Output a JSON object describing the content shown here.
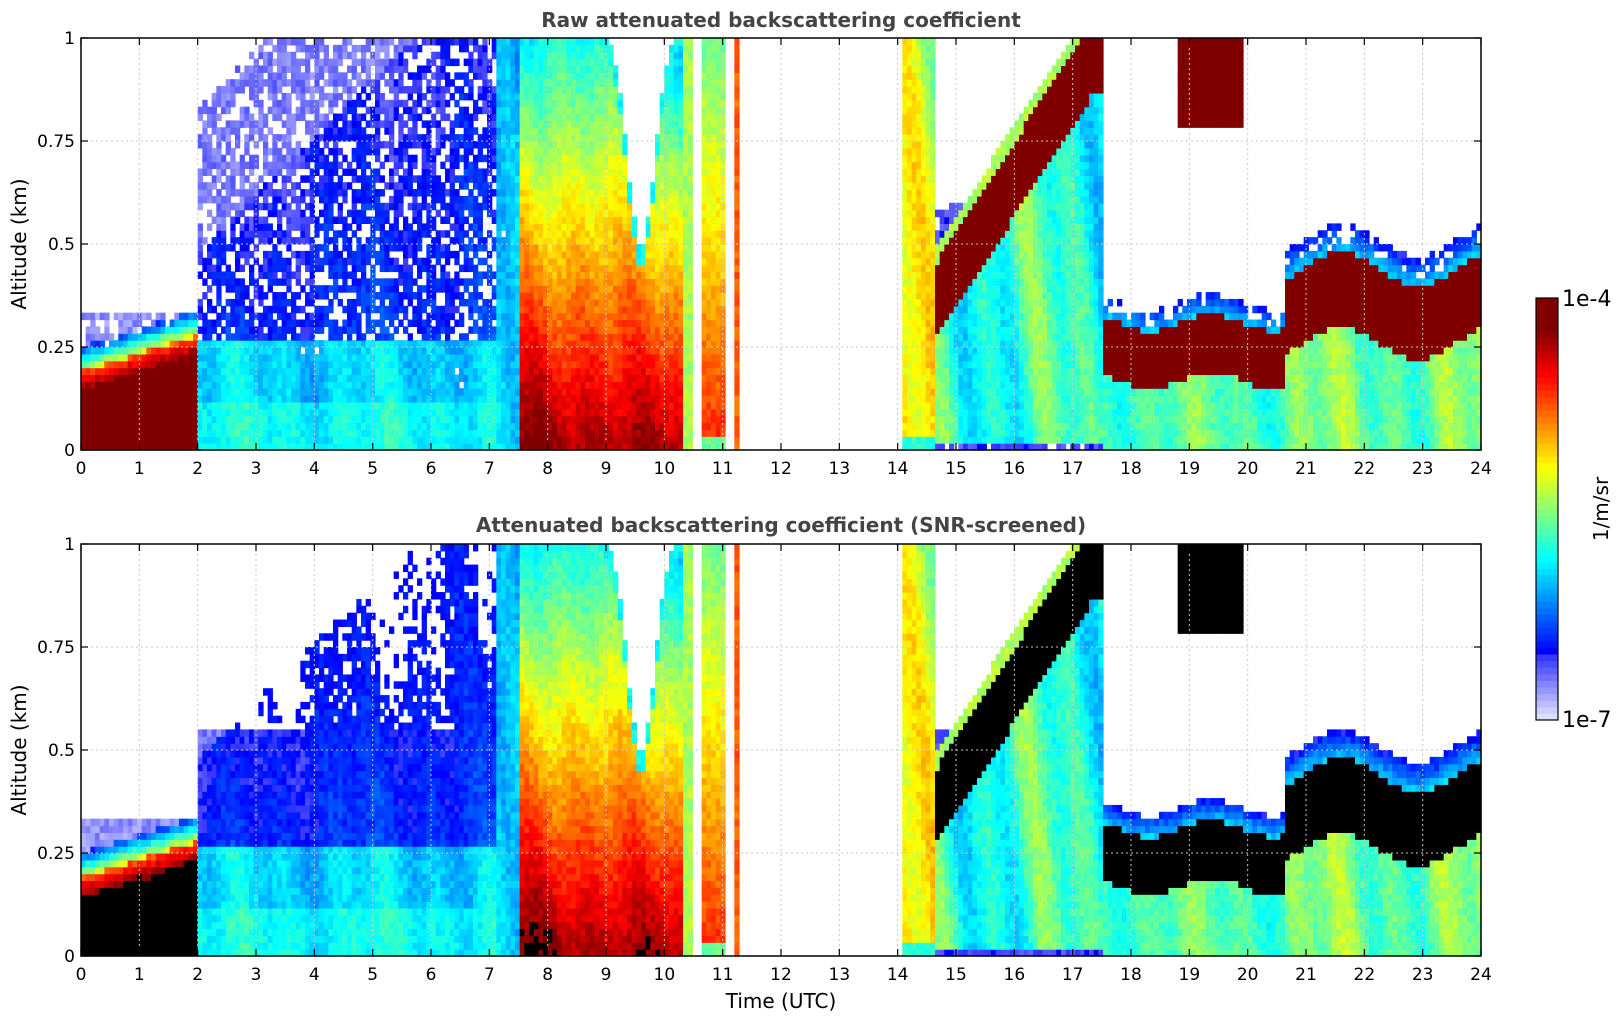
{
  "chart_data": [
    {
      "type": "heatmap",
      "title": "Raw attenuated backscattering coefficient",
      "xlabel": "",
      "ylabel": "Altitude (km)",
      "xlim": [
        0,
        24
      ],
      "ylim": [
        0,
        1
      ],
      "x_ticks": [
        "0",
        "1",
        "2",
        "3",
        "4",
        "5",
        "6",
        "7",
        "8",
        "9",
        "10",
        "11",
        "12",
        "13",
        "14",
        "15",
        "16",
        "17",
        "18",
        "19",
        "20",
        "21",
        "22",
        "23",
        "24"
      ],
      "y_ticks": [
        "0",
        "0.25",
        "0.5",
        "0.75",
        "1"
      ],
      "grid": true,
      "screened": false,
      "regimes": [
        {
          "t0": 0.0,
          "t1": 2.0,
          "description": "stable boundary layer, top rising 0.20 to 0.28 km"
        },
        {
          "t0": 2.0,
          "t1": 7.1,
          "description": "weak aerosol signal up to 0.5-1.0 km"
        },
        {
          "t0": 7.1,
          "t1": 11.3,
          "description": "strong fog/low cloud returns, intermittent"
        },
        {
          "t0": 11.3,
          "t1": 14.1,
          "description": "no data"
        },
        {
          "t0": 14.1,
          "t1": 17.5,
          "description": "cloud layer rising from 0.35 to 1.0 km"
        },
        {
          "t0": 17.5,
          "t1": 20.6,
          "description": "cloud layer at about 0.25 km"
        },
        {
          "t0": 20.6,
          "t1": 24.0,
          "description": "cloud layer at about 0.35 km"
        }
      ]
    },
    {
      "type": "heatmap",
      "title": "Attenuated backscattering coefficient (SNR-screened)",
      "xlabel": "Time (UTC)",
      "ylabel": "Altitude (km)",
      "xlim": [
        0,
        24
      ],
      "ylim": [
        0,
        1
      ],
      "x_ticks": [
        "0",
        "1",
        "2",
        "3",
        "4",
        "5",
        "6",
        "7",
        "8",
        "9",
        "10",
        "11",
        "12",
        "13",
        "14",
        "15",
        "16",
        "17",
        "18",
        "19",
        "20",
        "21",
        "22",
        "23",
        "24"
      ],
      "y_ticks": [
        "0",
        "0.25",
        "0.5",
        "0.75",
        "1"
      ],
      "grid": true,
      "screened": true
    }
  ],
  "colorbar": {
    "label": "1/m/sr",
    "max_label": "1e-4",
    "min_label": "1e-7",
    "scale": "log",
    "colormap": "jet"
  },
  "colors": {
    "title": "#444444",
    "grid": "#c8c8c8",
    "saturated_raw": "#800000",
    "saturated_screened": "#000000"
  }
}
